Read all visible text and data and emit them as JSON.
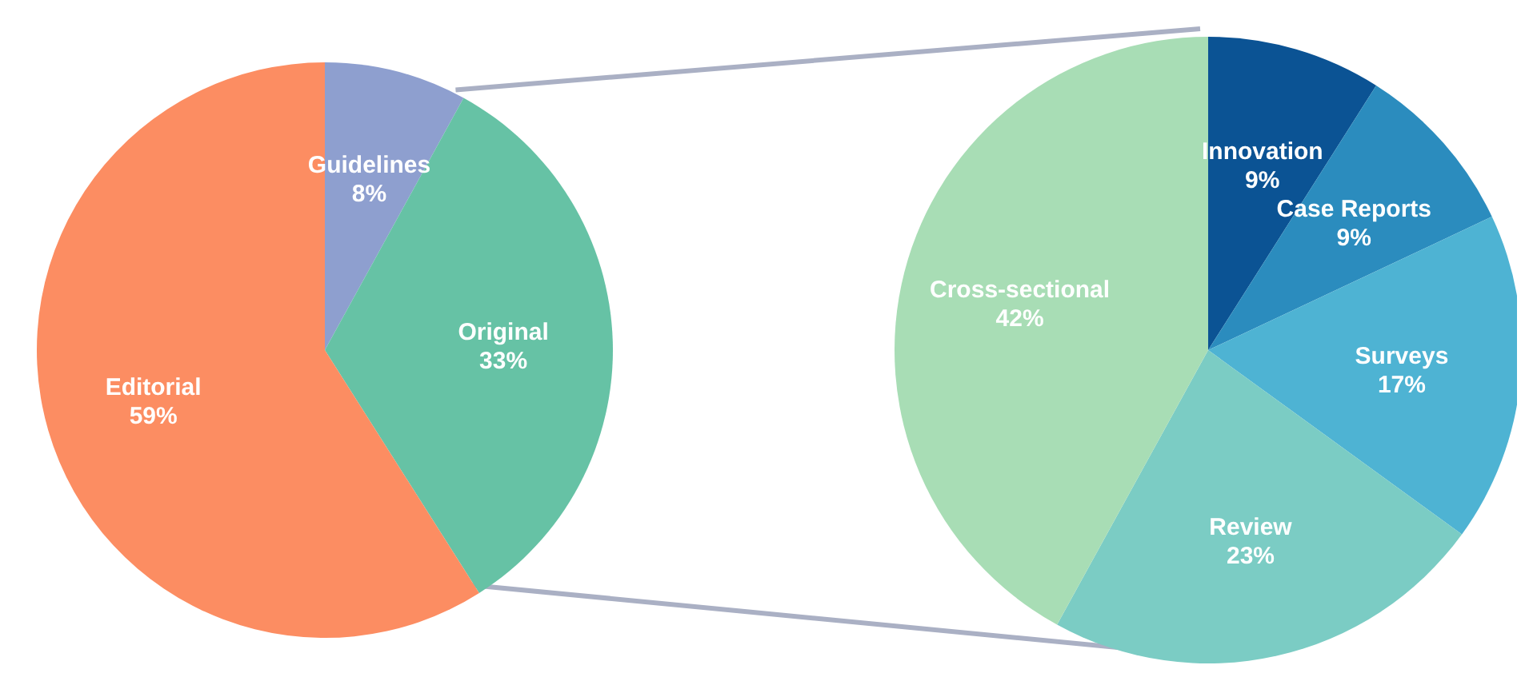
{
  "chart_data": [
    {
      "type": "pie",
      "categories": [
        "Guidelines",
        "Original",
        "Editorial"
      ],
      "values": [
        8,
        33,
        59
      ],
      "colors": [
        "#8e9fcf",
        "#66c2a5",
        "#fc8d62"
      ],
      "value_labels": [
        "8%",
        "33%",
        "59%"
      ]
    },
    {
      "type": "pie",
      "categories": [
        "Innovation",
        "Case Reports",
        "Surveys",
        "Review",
        "Cross-sectional"
      ],
      "values": [
        9,
        9,
        17,
        23,
        42
      ],
      "colors": [
        "#0b5394",
        "#2b8cbe",
        "#4eb3d3",
        "#7bccc4",
        "#a8ddb5"
      ],
      "value_labels": [
        "9%",
        "9%",
        "17%",
        "23%",
        "42%"
      ]
    }
  ]
}
